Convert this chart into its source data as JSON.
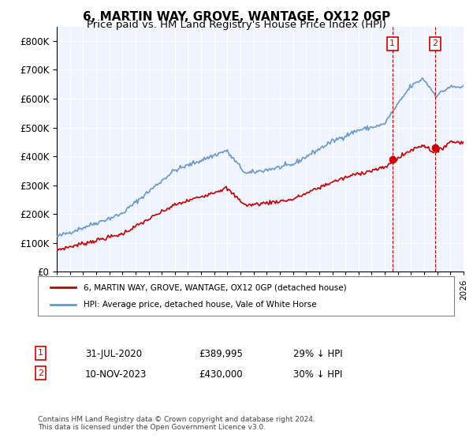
{
  "title": "6, MARTIN WAY, GROVE, WANTAGE, OX12 0GP",
  "subtitle": "Price paid vs. HM Land Registry's House Price Index (HPI)",
  "title_fontsize": 11,
  "subtitle_fontsize": 9.5,
  "background_color": "#ffffff",
  "plot_bg_color": "#f0f4ff",
  "grid_color": "#ffffff",
  "hpi_color": "#6699cc",
  "price_color": "#cc0000",
  "marker1_date_idx": 308,
  "marker2_date_idx": 344,
  "marker1_label": "1",
  "marker2_label": "2",
  "marker1_date": "31-JUL-2020",
  "marker1_price": 389995,
  "marker1_pct": "29% ↓ HPI",
  "marker2_date": "10-NOV-2023",
  "marker2_price": 430000,
  "marker2_pct": "30% ↓ HPI",
  "legend_label_price": "6, MARTIN WAY, GROVE, WANTAGE, OX12 0GP (detached house)",
  "legend_label_hpi": "HPI: Average price, detached house, Vale of White Horse",
  "footnote": "Contains HM Land Registry data © Crown copyright and database right 2024.\nThis data is licensed under the Open Government Licence v3.0.",
  "ylabel": "",
  "ylim_min": 0,
  "ylim_max": 850000,
  "yticks": [
    0,
    100000,
    200000,
    300000,
    400000,
    500000,
    600000,
    700000,
    800000
  ]
}
